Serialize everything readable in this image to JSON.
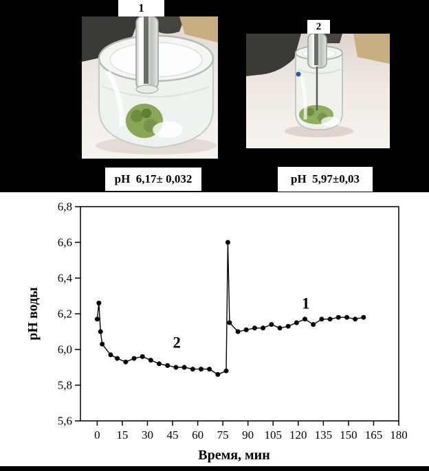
{
  "photos": {
    "vessel1": {
      "number": "1",
      "ph_label": "pH  6,17± 0,032"
    },
    "vessel2": {
      "number": "2",
      "ph_label": "pH  5,97±0,03"
    }
  },
  "chart_data": {
    "type": "line",
    "title": "",
    "xlabel": "Время, мин",
    "ylabel": "pH воды",
    "xlim": [
      -10,
      180
    ],
    "ylim": [
      5.6,
      6.8
    ],
    "grid": false,
    "legend": "none",
    "marker": "filled-circle",
    "line_color": "#000000",
    "x_ticks": [
      "0",
      "15",
      "30",
      "45",
      "60",
      "75",
      "90",
      "105",
      "120",
      "135",
      "150",
      "165",
      "180"
    ],
    "x_tick_values": [
      0,
      15,
      30,
      45,
      60,
      75,
      90,
      105,
      120,
      135,
      150,
      165,
      180
    ],
    "y_ticks": [
      "5,6",
      "5,8",
      "6,0",
      "6,2",
      "6,4",
      "6,6",
      "6,8"
    ],
    "y_tick_values": [
      5.6,
      5.8,
      6.0,
      6.2,
      6.4,
      6.6,
      6.8
    ],
    "series": [
      {
        "name": "pH воды",
        "points": [
          [
            0,
            6.17
          ],
          [
            1,
            6.26
          ],
          [
            2,
            6.1
          ],
          [
            3,
            6.03
          ],
          [
            8,
            5.97
          ],
          [
            12,
            5.95
          ],
          [
            17,
            5.93
          ],
          [
            22,
            5.95
          ],
          [
            27,
            5.96
          ],
          [
            32,
            5.94
          ],
          [
            37,
            5.92
          ],
          [
            42,
            5.91
          ],
          [
            47,
            5.9
          ],
          [
            52,
            5.9
          ],
          [
            57,
            5.89
          ],
          [
            62,
            5.89
          ],
          [
            67,
            5.89
          ],
          [
            72,
            5.86
          ],
          [
            77,
            5.88
          ],
          [
            78,
            6.6
          ],
          [
            79,
            6.15
          ],
          [
            84,
            6.1
          ],
          [
            89,
            6.11
          ],
          [
            94,
            6.12
          ],
          [
            99,
            6.12
          ],
          [
            104,
            6.14
          ],
          [
            109,
            6.12
          ],
          [
            114,
            6.13
          ],
          [
            119,
            6.15
          ],
          [
            124,
            6.17
          ],
          [
            129,
            6.14
          ],
          [
            134,
            6.17
          ],
          [
            139,
            6.17
          ],
          [
            144,
            6.18
          ],
          [
            149,
            6.18
          ],
          [
            154,
            6.17
          ],
          [
            159,
            6.18
          ]
        ]
      }
    ],
    "annotations": [
      {
        "text": "2",
        "x": 47.5,
        "y": 6.04
      },
      {
        "text": "1",
        "x": 124.5,
        "y": 6.26
      }
    ]
  }
}
